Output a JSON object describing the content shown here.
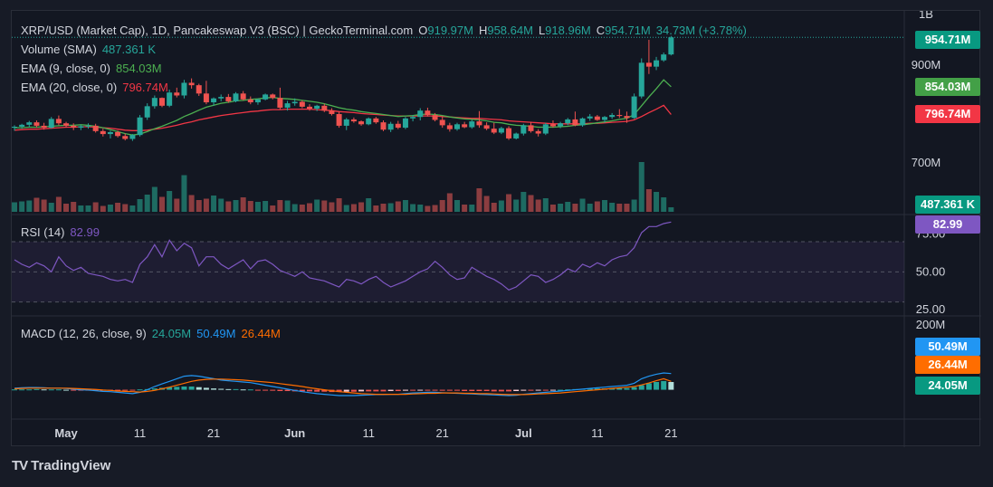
{
  "colors": {
    "up": "#26a69a",
    "down": "#ef5350",
    "ema9": "#4caf50",
    "ema20": "#f23645",
    "rsi": "#7e57c2",
    "macd": "#2962ff",
    "signal": "#ff6d00",
    "text": "#d1d4dc"
  },
  "legend": {
    "main": {
      "title": "XRP/USD (Market Cap), 1D, Pancakeswap V3 (BSC) | GeckoTerminal.com",
      "o_label": "O",
      "o": "919.97M",
      "h_label": "H",
      "h": "958.64M",
      "l_label": "L",
      "l": "918.96M",
      "c_label": "C",
      "c": "954.71M",
      "chg": "34.73M (+3.78%)"
    },
    "volume": {
      "label": "Volume (SMA)",
      "value": "487.361 K"
    },
    "ema9": {
      "label": "EMA (9, close, 0)",
      "value": "854.03M"
    },
    "ema20": {
      "label": "EMA (20, close, 0)",
      "value": "796.74M"
    },
    "rsi": {
      "label": "RSI (14)",
      "value": "82.99"
    },
    "macd": {
      "label": "MACD (12, 26, close, 9)",
      "hist": "24.05M",
      "macd": "50.49M",
      "signal": "26.44M"
    }
  },
  "badges": {
    "price": "954.71M",
    "ema9": "854.03M",
    "ema20": "796.74M",
    "volume": "487.361 K",
    "rsi": "82.99",
    "macd": "50.49M",
    "signal": "26.44M",
    "hist": "24.05M"
  },
  "price_axis": [
    "1B",
    "900M",
    "700M"
  ],
  "rsi_axis": [
    "75.00",
    "50.00",
    "25.00"
  ],
  "macd_axis": [
    "200M"
  ],
  "x_ticks": [
    "May",
    "11",
    "21",
    "Jun",
    "11",
    "21",
    "Jul",
    "11",
    "21"
  ],
  "brand": "TradingView",
  "chart_data": [
    {
      "type": "candlestick",
      "title": "XRP/USD (Market Cap), 1D",
      "x_start": "2024-04-24",
      "x_end": "2024-07-14",
      "ylim": [
        620,
        1000
      ],
      "candles": [
        [
          770,
          775,
          764,
          772
        ],
        [
          772,
          778,
          768,
          776
        ],
        [
          776,
          784,
          771,
          781
        ],
        [
          781,
          785,
          770,
          774
        ],
        [
          774,
          780,
          766,
          770
        ],
        [
          770,
          792,
          768,
          788
        ],
        [
          788,
          795,
          775,
          779
        ],
        [
          779,
          782,
          770,
          774
        ],
        [
          774,
          779,
          765,
          770
        ],
        [
          770,
          776,
          765,
          773
        ],
        [
          773,
          779,
          768,
          774
        ],
        [
          774,
          778,
          760,
          763
        ],
        [
          763,
          768,
          752,
          757
        ],
        [
          757,
          764,
          748,
          761
        ],
        [
          761,
          764,
          750,
          753
        ],
        [
          753,
          758,
          744,
          747
        ],
        [
          747,
          757,
          743,
          755
        ],
        [
          755,
          796,
          752,
          791
        ],
        [
          791,
          820,
          786,
          814
        ],
        [
          814,
          836,
          809,
          831
        ],
        [
          831,
          832,
          812,
          815
        ],
        [
          815,
          848,
          812,
          842
        ],
        [
          842,
          852,
          832,
          836
        ],
        [
          836,
          868,
          830,
          862
        ],
        [
          862,
          871,
          850,
          857
        ],
        [
          857,
          860,
          835,
          840
        ],
        [
          840,
          866,
          818,
          822
        ],
        [
          822,
          832,
          815,
          830
        ],
        [
          830,
          838,
          824,
          833
        ],
        [
          833,
          839,
          821,
          824
        ],
        [
          824,
          843,
          822,
          840
        ],
        [
          840,
          845,
          826,
          828
        ],
        [
          828,
          834,
          818,
          822
        ],
        [
          822,
          830,
          817,
          828
        ],
        [
          828,
          840,
          826,
          838
        ],
        [
          838,
          840,
          828,
          831
        ],
        [
          831,
          852,
          808,
          811
        ],
        [
          811,
          825,
          805,
          820
        ],
        [
          820,
          830,
          815,
          823
        ],
        [
          823,
          826,
          810,
          813
        ],
        [
          813,
          818,
          805,
          809
        ],
        [
          809,
          817,
          804,
          815
        ],
        [
          815,
          819,
          802,
          805
        ],
        [
          805,
          810,
          795,
          798
        ],
        [
          798,
          803,
          770,
          774
        ],
        [
          774,
          790,
          765,
          787
        ],
        [
          787,
          791,
          780,
          783
        ],
        [
          783,
          785,
          774,
          777
        ],
        [
          777,
          791,
          775,
          789
        ],
        [
          789,
          792,
          778,
          781
        ],
        [
          781,
          785,
          763,
          766
        ],
        [
          766,
          782,
          761,
          778
        ],
        [
          778,
          784,
          767,
          770
        ],
        [
          770,
          792,
          767,
          789
        ],
        [
          789,
          796,
          783,
          792
        ],
        [
          792,
          810,
          785,
          805
        ],
        [
          805,
          811,
          793,
          796
        ],
        [
          796,
          800,
          783,
          786
        ],
        [
          786,
          793,
          770,
          775
        ],
        [
          775,
          780,
          762,
          767
        ],
        [
          767,
          780,
          764,
          777
        ],
        [
          777,
          782,
          769,
          771
        ],
        [
          771,
          786,
          768,
          783
        ],
        [
          783,
          804,
          770,
          775
        ],
        [
          775,
          781,
          765,
          768
        ],
        [
          768,
          780,
          757,
          760
        ],
        [
          760,
          772,
          757,
          769
        ],
        [
          769,
          773,
          745,
          748
        ],
        [
          748,
          760,
          746,
          758
        ],
        [
          758,
          778,
          754,
          775
        ],
        [
          775,
          782,
          760,
          763
        ],
        [
          763,
          767,
          752,
          758
        ],
        [
          758,
          780,
          755,
          777
        ],
        [
          777,
          785,
          770,
          773
        ],
        [
          773,
          782,
          769,
          779
        ],
        [
          779,
          790,
          775,
          787
        ],
        [
          787,
          803,
          773,
          775
        ],
        [
          775,
          791,
          772,
          789
        ],
        [
          789,
          798,
          784,
          793
        ],
        [
          793,
          796,
          784,
          786
        ],
        [
          786,
          794,
          780,
          792
        ],
        [
          792,
          800,
          788,
          796
        ],
        [
          796,
          808,
          790,
          794
        ],
        [
          794,
          803,
          780,
          790
        ],
        [
          790,
          840,
          788,
          834
        ],
        [
          834,
          912,
          830,
          903
        ],
        [
          903,
          950,
          880,
          895
        ],
        [
          895,
          915,
          888,
          908
        ],
        [
          908,
          924,
          905,
          920
        ],
        [
          920,
          958,
          918,
          955
        ]
      ],
      "ema9": [
        770,
        770,
        771,
        771,
        772,
        773,
        774,
        775,
        775,
        776,
        775,
        773,
        770,
        766,
        762,
        758,
        755,
        757,
        762,
        768,
        773,
        779,
        785,
        793,
        799,
        806,
        812,
        816,
        820,
        822,
        825,
        826,
        828,
        829,
        831,
        832,
        830,
        829,
        828,
        826,
        824,
        822,
        819,
        815,
        811,
        808,
        806,
        803,
        801,
        799,
        797,
        795,
        793,
        794,
        795,
        797,
        798,
        797,
        795,
        792,
        790,
        788,
        787,
        786,
        784,
        781,
        780,
        777,
        775,
        774,
        773,
        771,
        771,
        771,
        772,
        773,
        775,
        776,
        778,
        780,
        782,
        784,
        787,
        789,
        797,
        815,
        833,
        850,
        868,
        854
      ],
      "ema20": [
        765,
        766,
        767,
        767,
        768,
        769,
        770,
        771,
        771,
        772,
        772,
        771,
        770,
        769,
        767,
        765,
        764,
        764,
        765,
        767,
        769,
        772,
        775,
        779,
        782,
        786,
        789,
        792,
        795,
        797,
        799,
        801,
        803,
        804,
        806,
        807,
        807,
        808,
        808,
        808,
        808,
        807,
        806,
        805,
        803,
        802,
        801,
        799,
        798,
        797,
        796,
        795,
        794,
        794,
        794,
        794,
        794,
        794,
        793,
        792,
        791,
        790,
        789,
        789,
        788,
        787,
        786,
        784,
        783,
        782,
        781,
        780,
        779,
        778,
        778,
        778,
        778,
        778,
        779,
        779,
        780,
        781,
        782,
        783,
        786,
        793,
        801,
        808,
        816,
        797
      ],
      "volume": [
        210,
        230,
        250,
        310,
        270,
        200,
        330,
        180,
        220,
        140,
        140,
        210,
        130,
        160,
        200,
        170,
        140,
        280,
        380,
        550,
        330,
        460,
        290,
        810,
        370,
        260,
        290,
        360,
        290,
        230,
        260,
        320,
        240,
        220,
        240,
        140,
        260,
        250,
        170,
        160,
        190,
        270,
        250,
        210,
        300,
        150,
        170,
        210,
        300,
        140,
        180,
        190,
        230,
        260,
        170,
        160,
        130,
        150,
        260,
        410,
        260,
        160,
        160,
        520,
        350,
        200,
        250,
        390,
        270,
        440,
        370,
        270,
        300,
        160,
        180,
        220,
        180,
        290,
        180,
        230,
        260,
        200,
        180,
        180,
        270,
        1100,
        500,
        440,
        320,
        100
      ]
    },
    {
      "type": "line",
      "title": "RSI (14)",
      "ylim": [
        25,
        85
      ],
      "levels": [
        30,
        50,
        70
      ],
      "values": [
        58,
        55,
        53,
        56,
        54,
        50,
        60,
        54,
        51,
        53,
        49,
        48,
        47,
        45,
        44,
        45,
        43,
        55,
        60,
        68,
        60,
        71,
        64,
        69,
        66,
        54,
        60,
        60,
        55,
        52,
        55,
        58,
        52,
        57,
        58,
        55,
        51,
        49,
        47,
        50,
        46,
        45,
        44,
        42,
        40,
        45,
        44,
        42,
        45,
        47,
        43,
        40,
        42,
        44,
        47,
        50,
        52,
        57,
        53,
        48,
        45,
        46,
        53,
        50,
        47,
        45,
        42,
        38,
        40,
        44,
        48,
        47,
        43,
        45,
        48,
        52,
        50,
        55,
        53,
        56,
        54,
        58,
        60,
        61,
        66,
        76,
        80,
        80,
        82,
        83
      ]
    },
    {
      "type": "bar+line",
      "title": "MACD (12, 26, close, 9)",
      "ylim": [
        -60,
        220
      ],
      "hist": [
        1,
        1,
        1,
        2,
        1,
        1,
        1,
        0,
        -1,
        -1,
        -1,
        -2,
        -2,
        -2,
        -2,
        -2,
        -2,
        1,
        2,
        4,
        6,
        8,
        9,
        10,
        10,
        8,
        6,
        4,
        3,
        2,
        2,
        1,
        1,
        -1,
        -2,
        -3,
        -4,
        -4,
        -5,
        -5,
        -5,
        -6,
        -6,
        -7,
        -7,
        -6,
        -6,
        -5,
        -5,
        -5,
        -5,
        -4,
        -4,
        -3,
        -3,
        -2,
        -2,
        -2,
        -3,
        -3,
        -3,
        -4,
        -4,
        -4,
        -4,
        -5,
        -5,
        -5,
        -4,
        -3,
        -3,
        -2,
        -2,
        -1,
        0,
        1,
        2,
        3,
        3,
        4,
        4,
        5,
        5,
        5,
        8,
        14,
        20,
        24,
        27,
        24
      ],
      "macd": [
        5,
        6,
        7,
        7,
        6,
        5,
        5,
        4,
        2,
        0,
        -1,
        -3,
        -5,
        -6,
        -8,
        -10,
        -12,
        -8,
        0,
        10,
        18,
        26,
        34,
        42,
        44,
        42,
        38,
        34,
        30,
        28,
        26,
        24,
        22,
        18,
        14,
        10,
        6,
        2,
        -2,
        -6,
        -9,
        -12,
        -14,
        -16,
        -18,
        -18,
        -18,
        -17,
        -16,
        -15,
        -15,
        -14,
        -14,
        -12,
        -10,
        -9,
        -8,
        -8,
        -9,
        -10,
        -11,
        -12,
        -13,
        -14,
        -15,
        -16,
        -17,
        -18,
        -17,
        -14,
        -12,
        -10,
        -8,
        -6,
        -4,
        -2,
        0,
        2,
        4,
        6,
        8,
        10,
        12,
        14,
        20,
        34,
        42,
        48,
        52,
        50
      ],
      "signal": [
        3,
        4,
        5,
        5,
        5,
        5,
        5,
        5,
        4,
        3,
        2,
        1,
        -1,
        -2,
        -4,
        -5,
        -6,
        -7,
        -5,
        -2,
        3,
        8,
        14,
        20,
        26,
        30,
        32,
        33,
        33,
        32,
        31,
        30,
        28,
        26,
        24,
        22,
        19,
        16,
        13,
        10,
        6,
        3,
        0,
        -3,
        -6,
        -8,
        -10,
        -12,
        -13,
        -14,
        -14,
        -14,
        -14,
        -14,
        -13,
        -12,
        -11,
        -11,
        -10,
        -10,
        -10,
        -11,
        -11,
        -12,
        -12,
        -13,
        -14,
        -15,
        -15,
        -15,
        -14,
        -13,
        -12,
        -11,
        -10,
        -8,
        -6,
        -4,
        -2,
        0,
        2,
        4,
        6,
        8,
        10,
        15,
        21,
        28,
        34,
        26
      ]
    }
  ]
}
